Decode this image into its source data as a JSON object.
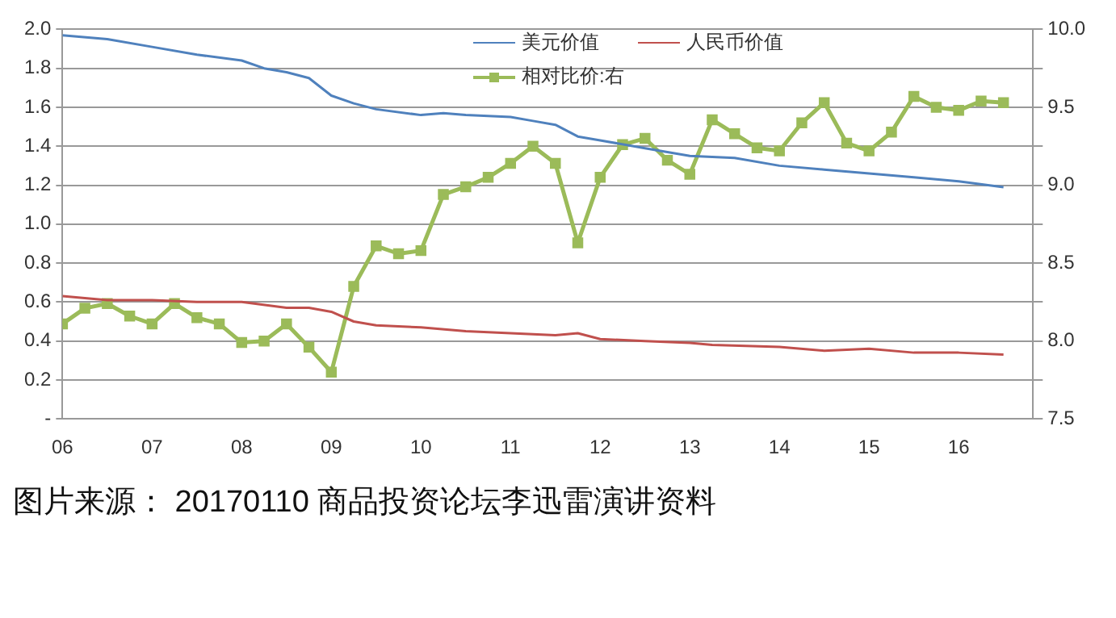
{
  "chart_data": {
    "type": "line",
    "xlim": [
      2006,
      2016.83
    ],
    "xticks": [
      {
        "value": 2006,
        "label": "06"
      },
      {
        "value": 2007,
        "label": "07"
      },
      {
        "value": 2008,
        "label": "08"
      },
      {
        "value": 2009,
        "label": "09"
      },
      {
        "value": 2010,
        "label": "10"
      },
      {
        "value": 2011,
        "label": "11"
      },
      {
        "value": 2012,
        "label": "12"
      },
      {
        "value": 2013,
        "label": "13"
      },
      {
        "value": 2014,
        "label": "14"
      },
      {
        "value": 2015,
        "label": "15"
      },
      {
        "value": 2016,
        "label": "16"
      }
    ],
    "ylim": [
      0,
      2
    ],
    "yticks": [
      {
        "value": 0,
        "label": "-"
      },
      0.2,
      0.4,
      0.6,
      0.8,
      {
        "value": 1,
        "label": "1.0"
      },
      1.2,
      1.4,
      1.6,
      1.8,
      {
        "value": 2,
        "label": "2.0"
      }
    ],
    "y2lim": [
      7.5,
      10
    ],
    "y2ticks": [
      7.5,
      {
        "value": 7.75,
        "label": null
      },
      {
        "value": 8,
        "label": "8.0"
      },
      {
        "value": 8.25,
        "label": null
      },
      8.5,
      {
        "value": 8.75,
        "label": null
      },
      {
        "value": 9,
        "label": "9.0"
      },
      {
        "value": 9.25,
        "label": null
      },
      9.5,
      {
        "value": 9.75,
        "label": null
      },
      {
        "value": 10,
        "label": "10.0"
      }
    ],
    "grid": "y",
    "legend": "top right",
    "annotations": [
      "图片来源： 20170110 商品投资论坛李迅雷演讲资料"
    ],
    "series": [
      {
        "name": "美元价值",
        "color": "#4f81bd",
        "marker": "none",
        "x": [
          2006,
          2006.5,
          2007,
          2007.5,
          2008,
          2008.25,
          2008.5,
          2008.75,
          2009,
          2009.25,
          2009.5,
          2010,
          2010.25,
          2010.5,
          2011,
          2011.25,
          2011.5,
          2011.75,
          2012,
          2012.5,
          2013,
          2013.5,
          2014,
          2014.5,
          2015,
          2015.5,
          2016,
          2016.5
        ],
        "values": [
          1.97,
          1.95,
          1.91,
          1.87,
          1.84,
          1.8,
          1.78,
          1.75,
          1.66,
          1.62,
          1.59,
          1.56,
          1.57,
          1.56,
          1.55,
          1.53,
          1.51,
          1.45,
          1.43,
          1.39,
          1.35,
          1.34,
          1.3,
          1.28,
          1.26,
          1.24,
          1.22,
          1.19
        ]
      },
      {
        "name": "人民币价值",
        "color": "#c0504d",
        "marker": "none",
        "x": [
          2006,
          2006.5,
          2007,
          2007.5,
          2008,
          2008.5,
          2008.75,
          2009,
          2009.25,
          2009.5,
          2010,
          2010.5,
          2011,
          2011.5,
          2011.75,
          2012,
          2012.5,
          2013,
          2013.25,
          2014,
          2014.5,
          2015,
          2015.5,
          2016,
          2016.5
        ],
        "values": [
          0.63,
          0.61,
          0.61,
          0.6,
          0.6,
          0.57,
          0.57,
          0.55,
          0.5,
          0.48,
          0.47,
          0.45,
          0.44,
          0.43,
          0.44,
          0.41,
          0.4,
          0.39,
          0.38,
          0.37,
          0.35,
          0.36,
          0.34,
          0.34,
          0.33
        ]
      },
      {
        "name": "相对比价:右",
        "color": "#9bbb59",
        "marker": "square",
        "axis": "y2",
        "x": [
          2006,
          2006.25,
          2006.5,
          2006.75,
          2007,
          2007.25,
          2007.5,
          2007.75,
          2008,
          2008.25,
          2008.5,
          2008.75,
          2009,
          2009.25,
          2009.5,
          2009.75,
          2010,
          2010.25,
          2010.5,
          2010.75,
          2011,
          2011.25,
          2011.5,
          2011.75,
          2012,
          2012.25,
          2012.5,
          2012.75,
          2013,
          2013.25,
          2013.5,
          2013.75,
          2014,
          2014.25,
          2014.5,
          2014.75,
          2015,
          2015.25,
          2015.5,
          2015.75,
          2016,
          2016.25,
          2016.5
        ],
        "values": [
          8.11,
          8.21,
          8.24,
          8.16,
          8.11,
          8.24,
          8.15,
          8.11,
          7.99,
          8.0,
          8.11,
          7.96,
          7.8,
          8.35,
          8.61,
          8.56,
          8.58,
          8.94,
          8.99,
          9.05,
          9.14,
          9.25,
          9.14,
          8.63,
          9.05,
          9.26,
          9.3,
          9.16,
          9.07,
          9.42,
          9.33,
          9.24,
          9.22,
          9.4,
          9.53,
          9.27,
          9.22,
          9.34,
          9.57,
          9.5,
          9.48,
          9.54,
          9.53
        ]
      }
    ]
  }
}
